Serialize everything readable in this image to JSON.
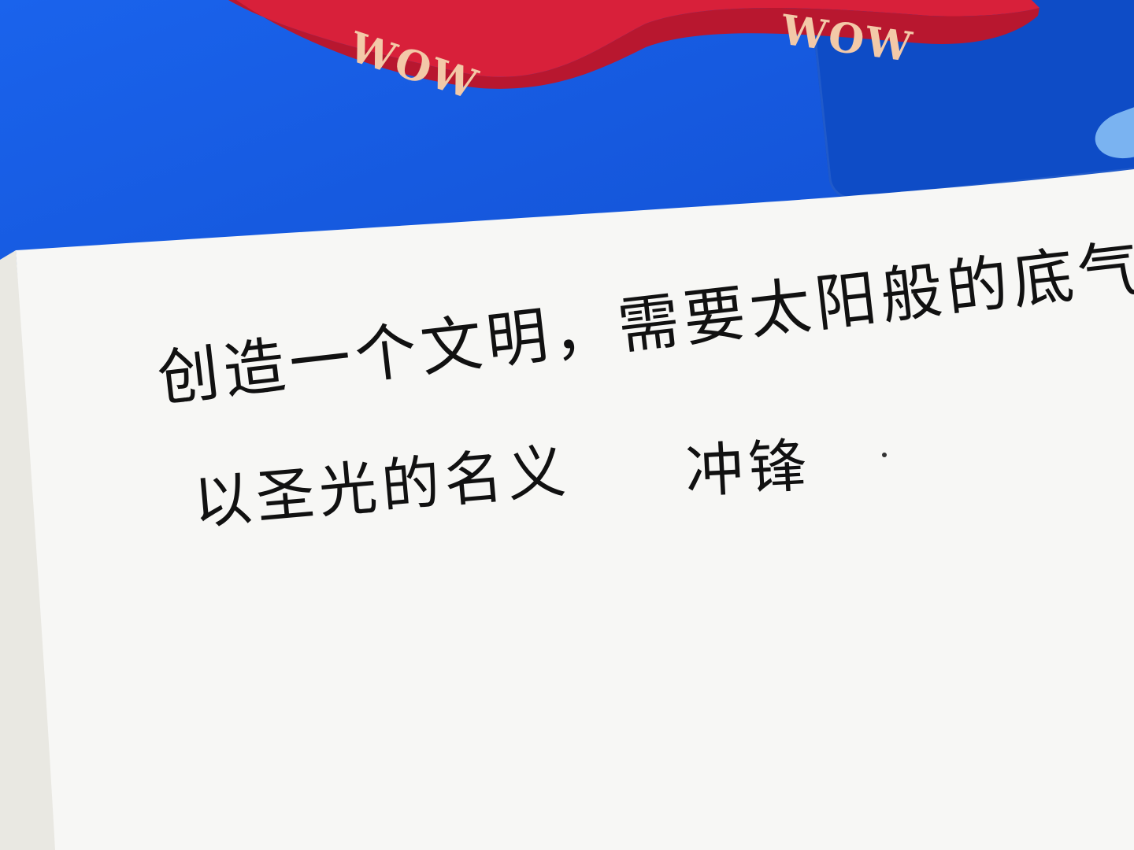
{
  "ribbon": {
    "color": "#d8203a",
    "text_color": "#f3c9a8",
    "printed_text": [
      "WOW",
      "WOW"
    ]
  },
  "background": {
    "surface_color": "#1656d8"
  },
  "notebook": {
    "paper_color": "#f7f7f5",
    "ink_color": "#111111",
    "handwriting": {
      "line1": "创造一个文明，需要太阳般的底气。",
      "line2": "以圣光的名义",
      "line2_signature": "冲锋",
      "line2_end": "."
    }
  }
}
